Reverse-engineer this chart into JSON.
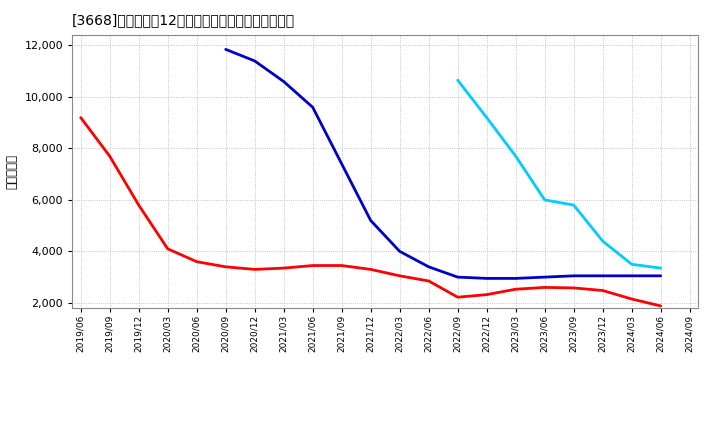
{
  "title": "[3668]　経常利益12か月移動合計の標準偏差の推移",
  "ylabel": "（百万円）",
  "ylim": [
    1800,
    12400
  ],
  "yticks": [
    2000,
    4000,
    6000,
    8000,
    10000,
    12000
  ],
  "background_color": "#ffffff",
  "plot_bg_color": "#ffffff",
  "series": {
    "3year": {
      "color": "#ff0000",
      "x": [
        "2019/06",
        "2019/09",
        "2019/12",
        "2020/03",
        "2020/06",
        "2020/09",
        "2020/12",
        "2021/03",
        "2021/06",
        "2021/09",
        "2021/12",
        "2022/03",
        "2022/06",
        "2022/09",
        "2022/12",
        "2023/03",
        "2023/06",
        "2023/09",
        "2023/12",
        "2024/03",
        "2024/06"
      ],
      "y": [
        9200,
        7700,
        5800,
        4100,
        3600,
        3400,
        3300,
        3350,
        3450,
        3450,
        3300,
        3050,
        2850,
        2220,
        2320,
        2530,
        2600,
        2580,
        2480,
        2150,
        1880
      ]
    },
    "5year": {
      "color": "#0000cc",
      "x": [
        "2020/09",
        "2020/12",
        "2021/03",
        "2021/06",
        "2021/09",
        "2021/12",
        "2022/03",
        "2022/06",
        "2022/09",
        "2022/12",
        "2023/03",
        "2023/06",
        "2023/09",
        "2023/12",
        "2024/03",
        "2024/06"
      ],
      "y": [
        11850,
        11400,
        10600,
        9600,
        7400,
        5200,
        4000,
        3400,
        3000,
        2950,
        2950,
        3000,
        3050,
        3050,
        3050,
        3050
      ]
    },
    "7year": {
      "color": "#00ccff",
      "x": [
        "2022/09",
        "2022/12",
        "2023/03",
        "2023/06",
        "2023/09",
        "2023/12",
        "2024/03",
        "2024/06"
      ],
      "y": [
        10650,
        9200,
        7700,
        6000,
        5800,
        4400,
        3500,
        3350
      ]
    },
    "10year": {
      "color": "#008000",
      "x": [],
      "y": []
    }
  },
  "x_ticks": [
    "2019/06",
    "2019/09",
    "2019/12",
    "2020/03",
    "2020/06",
    "2020/09",
    "2020/12",
    "2021/03",
    "2021/06",
    "2021/09",
    "2021/12",
    "2022/03",
    "2022/06",
    "2022/09",
    "2022/12",
    "2023/03",
    "2023/06",
    "2023/09",
    "2023/12",
    "2024/03",
    "2024/06",
    "2024/09"
  ]
}
